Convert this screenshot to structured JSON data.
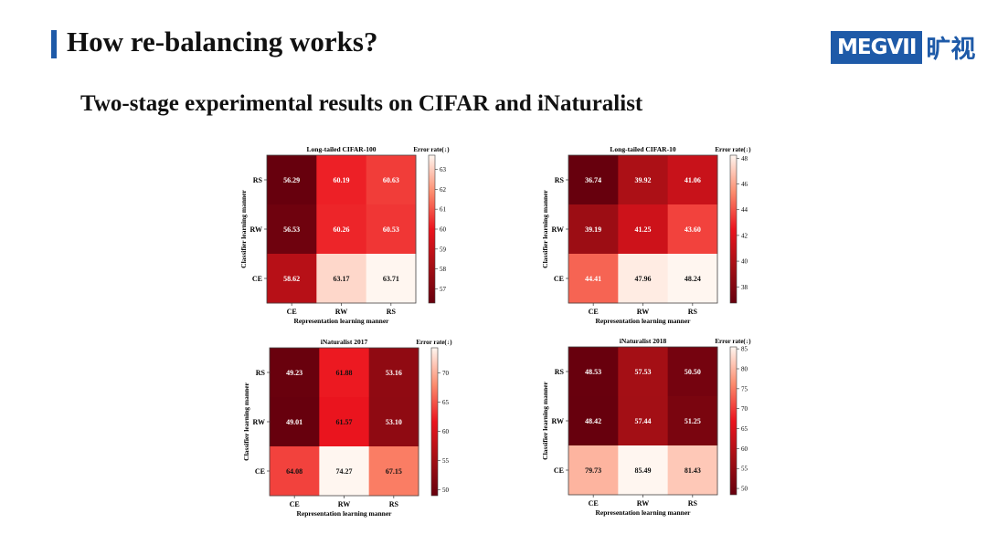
{
  "slide": {
    "title": "How re-balancing works?",
    "subtitle": "Two-stage experimental results on CIFAR and iNaturalist",
    "logo_text": "MEGVII",
    "logo_cn": "旷视",
    "accent_color": "#1e5aa8"
  },
  "chart_data": [
    {
      "type": "heatmap",
      "title": "Long-tailed CIFAR-100",
      "xlabel": "Representation learning manner",
      "ylabel": "Classifier learning manner",
      "colorbar_label": "Error rate(↓)",
      "x_categories": [
        "CE",
        "RW",
        "RS"
      ],
      "y_categories": [
        "RS",
        "RW",
        "CE"
      ],
      "values": [
        [
          56.29,
          60.19,
          60.63
        ],
        [
          56.53,
          60.26,
          60.53
        ],
        [
          58.62,
          63.17,
          63.71
        ]
      ],
      "label_dark": [
        [
          false,
          false,
          false
        ],
        [
          false,
          false,
          false
        ],
        [
          false,
          true,
          true
        ]
      ],
      "value_labels": [
        [
          "56.29",
          "60.19",
          "60.63"
        ],
        [
          "56.53",
          "60.26",
          "60.53"
        ],
        [
          "58.62",
          "63.17",
          "63.71"
        ]
      ],
      "colorbar_range": [
        56.29,
        63.71
      ],
      "colorbar_ticks": [
        "57",
        "58",
        "59",
        "60",
        "61",
        "62",
        "63"
      ]
    },
    {
      "type": "heatmap",
      "title": "Long-tailed CIFAR-10",
      "xlabel": "Representation learning manner",
      "ylabel": "Classifier learning manner",
      "colorbar_label": "Error rate(↓)",
      "x_categories": [
        "CE",
        "RW",
        "RS"
      ],
      "y_categories": [
        "RS",
        "RW",
        "CE"
      ],
      "values": [
        [
          36.74,
          39.92,
          41.06
        ],
        [
          39.19,
          41.25,
          43.6
        ],
        [
          44.41,
          47.96,
          48.24
        ]
      ],
      "label_dark": [
        [
          false,
          false,
          false
        ],
        [
          false,
          false,
          false
        ],
        [
          false,
          true,
          true
        ]
      ],
      "value_labels": [
        [
          "36.74",
          "39.92",
          "41.06"
        ],
        [
          "39.19",
          "41.25",
          "43.60"
        ],
        [
          "44.41",
          "47.96",
          "48.24"
        ]
      ],
      "colorbar_range": [
        36.74,
        48.24
      ],
      "colorbar_ticks": [
        "38",
        "40",
        "42",
        "44",
        "46",
        "48"
      ]
    },
    {
      "type": "heatmap",
      "title": "iNaturalist 2017",
      "xlabel": "Representation learning manner",
      "ylabel": "Classifier learning manner",
      "colorbar_label": "Error rate(↓)",
      "x_categories": [
        "CE",
        "RW",
        "RS"
      ],
      "y_categories": [
        "RS",
        "RW",
        "CE"
      ],
      "values": [
        [
          49.23,
          61.88,
          53.16
        ],
        [
          49.01,
          61.57,
          53.1
        ],
        [
          64.08,
          74.27,
          67.15
        ]
      ],
      "label_dark": [
        [
          false,
          true,
          false
        ],
        [
          false,
          true,
          false
        ],
        [
          true,
          true,
          true
        ]
      ],
      "value_labels": [
        [
          "49.23",
          "61.88",
          "53.16"
        ],
        [
          "49.01",
          "61.57",
          "53.10"
        ],
        [
          "64.08",
          "74.27",
          "67.15"
        ]
      ],
      "colorbar_range": [
        49.01,
        74.27
      ],
      "colorbar_ticks": [
        "50",
        "55",
        "60",
        "65",
        "70"
      ]
    },
    {
      "type": "heatmap",
      "title": "iNaturalist 2018",
      "xlabel": "Representation learning manner",
      "ylabel": "Classifier learning manner",
      "colorbar_label": "Error rate(↓)",
      "x_categories": [
        "CE",
        "RW",
        "RS"
      ],
      "y_categories": [
        "RS",
        "RW",
        "CE"
      ],
      "values": [
        [
          48.53,
          57.53,
          50.5
        ],
        [
          48.42,
          57.44,
          51.25
        ],
        [
          79.73,
          85.49,
          81.43
        ]
      ],
      "label_dark": [
        [
          false,
          false,
          false
        ],
        [
          false,
          false,
          false
        ],
        [
          true,
          true,
          true
        ]
      ],
      "value_labels": [
        [
          "48.53",
          "57.53",
          "50.50"
        ],
        [
          "48.42",
          "57.44",
          "51.25"
        ],
        [
          "79.73",
          "85.49",
          "81.43"
        ]
      ],
      "colorbar_range": [
        48.42,
        85.49
      ],
      "colorbar_ticks": [
        "50",
        "55",
        "60",
        "65",
        "70",
        "75",
        "80",
        "85"
      ]
    }
  ]
}
